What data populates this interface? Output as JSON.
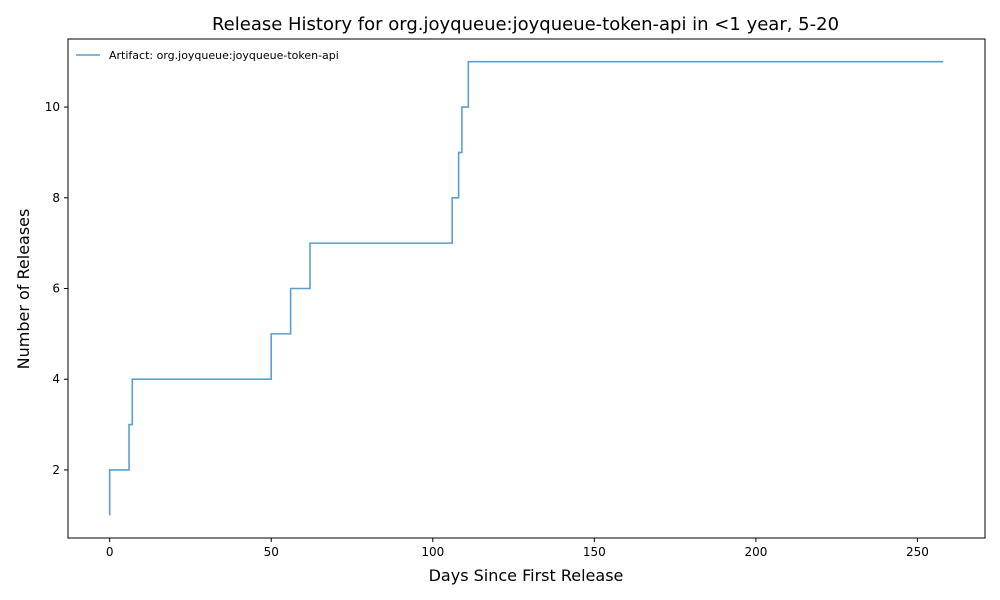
{
  "chart_data": {
    "type": "line",
    "title": "Release History for org.joyqueue:joyqueue-token-api in <1 year, 5-20",
    "xlabel": "Days Since First Release",
    "ylabel": "Number of Releases",
    "xlim": [
      -12.9,
      270.9
    ],
    "ylim": [
      0.5,
      11.5
    ],
    "xticks": [
      0,
      50,
      100,
      150,
      200,
      250
    ],
    "yticks": [
      2,
      4,
      6,
      8,
      10
    ],
    "grid": false,
    "legend_position": "top-left",
    "series": [
      {
        "name": "Artifact: org.joyqueue:joyqueue-token-api",
        "color": "#5b9fcf",
        "step": "post",
        "x": [
          0,
          0,
          6,
          7,
          50,
          56,
          62,
          106,
          108,
          109,
          111,
          258
        ],
        "y": [
          1,
          2,
          3,
          4,
          5,
          6,
          7,
          8,
          9,
          10,
          11,
          11
        ]
      }
    ]
  }
}
